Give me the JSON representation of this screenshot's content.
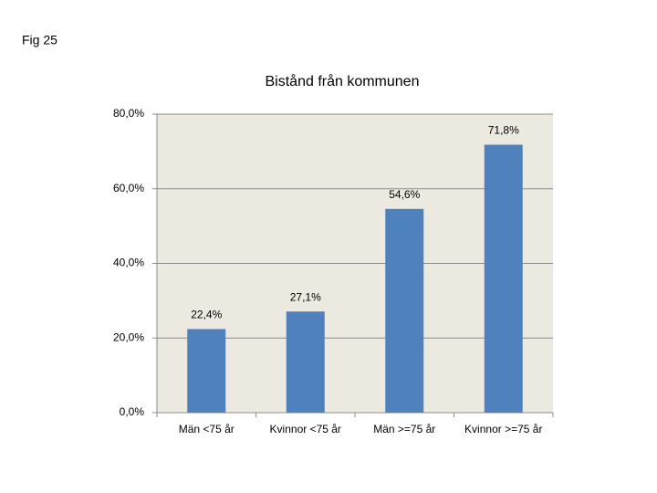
{
  "page_label": "Fig 25",
  "chart_data": {
    "type": "bar",
    "title": "Bistånd från kommunen",
    "categories": [
      "Män <75 år",
      "Kvinnor <75 år",
      "Män >=75 år",
      "Kvinnor >=75 år"
    ],
    "values": [
      22.4,
      27.1,
      54.6,
      71.8
    ],
    "value_labels": [
      "22,4%",
      "27,1%",
      "54,6%",
      "71,8%"
    ],
    "color": "#4f81bd",
    "ylim": [
      0,
      80
    ],
    "yticks": [
      {
        "value": 0,
        "label": "0,0%"
      },
      {
        "value": 20,
        "label": "20,0%"
      },
      {
        "value": 40,
        "label": "40,0%"
      },
      {
        "value": 60,
        "label": "60,0%"
      },
      {
        "value": 80,
        "label": "80,0%"
      }
    ],
    "grid": true
  }
}
